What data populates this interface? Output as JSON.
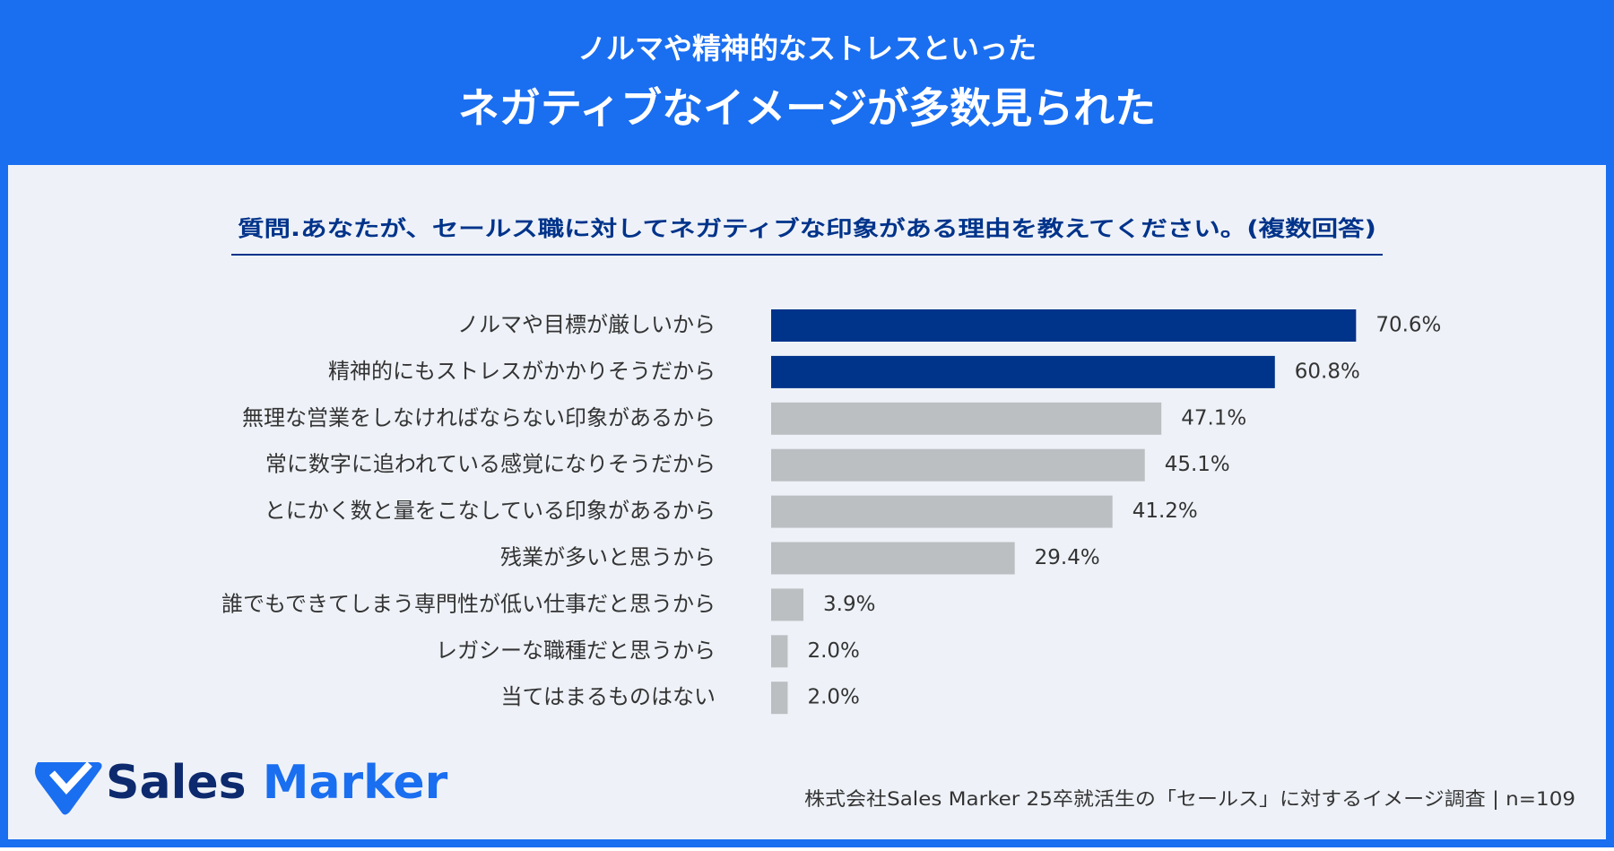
{
  "header": {
    "line1": "ノルマや精神的なストレスといった",
    "line2": "ネガティブなイメージが多数見られた"
  },
  "question": "質問.あなたが、セールス職に対してネガティブな印象がある理由を教えてください。(複数回答)",
  "chart_data": {
    "type": "bar",
    "orientation": "horizontal",
    "categories": [
      "ノルマや目標が厳しいから",
      "精神的にもストレスがかかりそうだから",
      "無理な営業をしなければならない印象があるから",
      "常に数字に追われている感覚になりそうだから",
      "とにかく数と量をこなしている印象があるから",
      "残業が多いと思うから",
      "誰でもできてしまう専門性が低い仕事だと思うから",
      "レガシーな職種だと思うから",
      "当てはまるものはない"
    ],
    "values": [
      70.6,
      60.8,
      47.1,
      45.1,
      41.2,
      29.4,
      3.9,
      2.0,
      2.0
    ],
    "value_labels": [
      "70.6%",
      "60.8%",
      "47.1%",
      "45.1%",
      "41.2%",
      "29.4%",
      "3.9%",
      "2.0%",
      "2.0%"
    ],
    "colors": [
      "#00338a",
      "#00338a",
      "#bcbfc2",
      "#bcbfc2",
      "#bcbfc2",
      "#bcbfc2",
      "#bcbfc2",
      "#bcbfc2",
      "#bcbfc2"
    ]
  },
  "logo": [
    "Sales",
    "Marker"
  ],
  "footer": "株式会社Sales Marker 25卒就活生の「セールス」に対するイメージ調査 | n=109"
}
